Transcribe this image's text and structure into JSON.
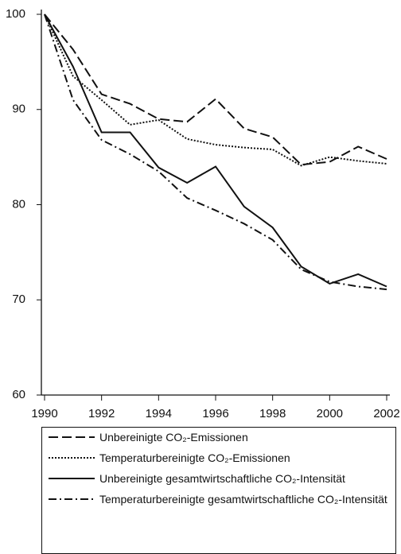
{
  "chart_data": {
    "type": "line",
    "x": [
      1990,
      1991,
      1992,
      1993,
      1994,
      1995,
      1996,
      1997,
      1998,
      1999,
      2000,
      2001,
      2002
    ],
    "series": [
      {
        "name": "Unbereinigte CO₂-Emissionen",
        "color": "#111111",
        "dash": "12,5",
        "values": [
          100,
          96.3,
          91.6,
          90.6,
          89.0,
          88.7,
          91.1,
          88.0,
          87.1,
          84.2,
          84.5,
          86.1,
          84.8
        ]
      },
      {
        "name": "Temperaturbereinigte CO₂-Emissionen",
        "color": "#111111",
        "dash": "2,2",
        "values": [
          100,
          93.5,
          91.0,
          88.4,
          88.9,
          86.9,
          86.3,
          86.0,
          85.8,
          84.1,
          85.0,
          84.6,
          84.3
        ]
      },
      {
        "name": "Unbereinigte gesamtwirtschaftliche CO₂-Intensität",
        "color": "#111111",
        "dash": "none",
        "values": [
          100,
          94.5,
          87.6,
          87.6,
          83.9,
          82.3,
          84.0,
          79.8,
          77.6,
          73.5,
          71.7,
          72.7,
          71.4
        ]
      },
      {
        "name": "Temperaturbereinigte gesamtwirtschaftliche CO₂-Intensität",
        "color": "#111111",
        "dash": "10,4,2,4",
        "values": [
          100,
          91.0,
          86.8,
          85.3,
          83.5,
          80.7,
          79.4,
          78.0,
          76.3,
          73.2,
          71.9,
          71.4,
          71.1
        ]
      }
    ],
    "xlim": [
      1990,
      2002
    ],
    "xticks": [
      1990,
      1992,
      1994,
      1996,
      1998,
      2000,
      2002
    ],
    "ylim": [
      60,
      100
    ],
    "yticks": [
      60,
      70,
      80,
      90,
      100
    ]
  }
}
